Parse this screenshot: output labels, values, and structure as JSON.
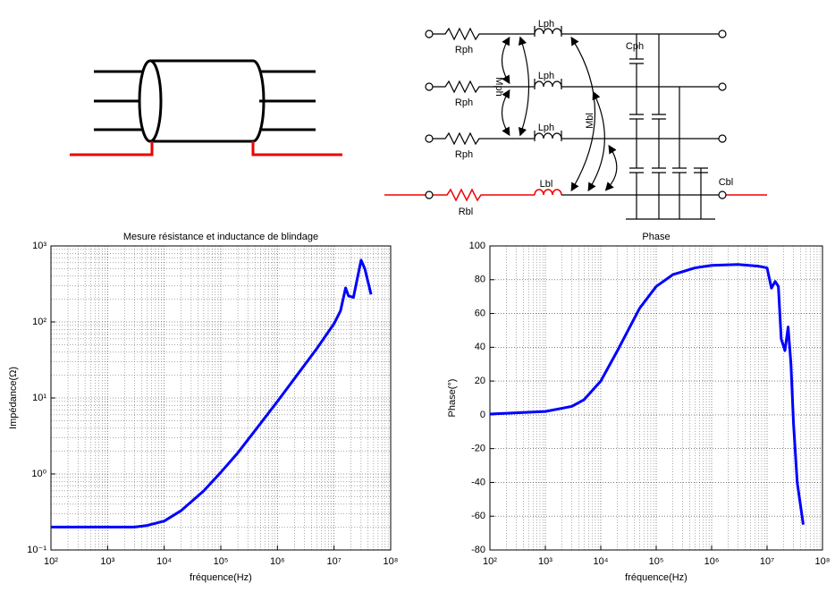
{
  "circuit": {
    "labels": [
      "Rph",
      "Rph",
      "Rph",
      "Lph",
      "Lph",
      "Lph",
      "Cph",
      "Mph",
      "Mbl",
      "Lbl",
      "Rbl",
      "Cbl"
    ]
  },
  "chart_data": [
    {
      "type": "line",
      "title": "Mesure résistance et inductance de blindage",
      "x_label": "fréquence(Hz)",
      "y_label": "Impédance(Ω)",
      "log_x": true,
      "log_y": true,
      "grid": true,
      "color": "#0000ff",
      "xlim": [
        100,
        100000000
      ],
      "ylim": [
        0.1,
        1000
      ],
      "xticks": [
        {
          "value": 100,
          "label": "10²"
        },
        {
          "value": 1000,
          "label": "10³"
        },
        {
          "value": 10000,
          "label": "10⁴"
        },
        {
          "value": 100000,
          "label": "10⁵"
        },
        {
          "value": 1000000,
          "label": "10⁶"
        },
        {
          "value": 10000000,
          "label": "10⁷"
        },
        {
          "value": 100000000,
          "label": "10⁸"
        }
      ],
      "yticks": [
        {
          "value": 0.1,
          "label": "10⁻¹"
        },
        {
          "value": 1,
          "label": "10⁰"
        },
        {
          "value": 10,
          "label": "10¹"
        },
        {
          "value": 100,
          "label": "10²"
        },
        {
          "value": 1000,
          "label": "10³"
        }
      ],
      "x": [
        100,
        1000,
        3000,
        5000,
        10000,
        20000,
        50000,
        100000,
        200000,
        500000,
        1000000,
        2000000,
        5000000,
        10000000,
        13000000,
        16000000,
        18000000,
        22000000,
        30000000,
        35000000,
        45000000
      ],
      "values": [
        0.2,
        0.2,
        0.2,
        0.21,
        0.24,
        0.33,
        0.6,
        1.05,
        1.9,
        4.6,
        9,
        18,
        45,
        95,
        140,
        280,
        220,
        210,
        650,
        500,
        230
      ]
    },
    {
      "type": "line",
      "title": "Phase",
      "x_label": "fréquence(Hz)",
      "y_label": "Phase(°)",
      "log_x": true,
      "log_y": false,
      "grid": true,
      "color": "#0000ff",
      "xlim": [
        100,
        100000000
      ],
      "ylim": [
        -80,
        100
      ],
      "xticks": [
        {
          "value": 100,
          "label": "10²"
        },
        {
          "value": 1000,
          "label": "10³"
        },
        {
          "value": 10000,
          "label": "10⁴"
        },
        {
          "value": 100000,
          "label": "10⁵"
        },
        {
          "value": 1000000,
          "label": "10⁶"
        },
        {
          "value": 10000000,
          "label": "10⁷"
        },
        {
          "value": 100000000,
          "label": "10⁸"
        }
      ],
      "yticks": [
        -80,
        -60,
        -40,
        -20,
        0,
        20,
        40,
        60,
        80,
        100
      ],
      "x": [
        100,
        1000,
        3000,
        5000,
        10000,
        20000,
        50000,
        100000,
        200000,
        500000,
        1000000,
        3000000,
        7000000,
        10000000,
        12000000,
        14000000,
        16000000,
        18000000,
        21000000,
        24000000,
        27000000,
        30000000,
        35000000,
        45000000
      ],
      "values": [
        0.5,
        2,
        5,
        9,
        20,
        38,
        63,
        76,
        83,
        87,
        88.5,
        89,
        88,
        87,
        75,
        79,
        76,
        45,
        38,
        52,
        30,
        -5,
        -40,
        -65
      ]
    }
  ]
}
